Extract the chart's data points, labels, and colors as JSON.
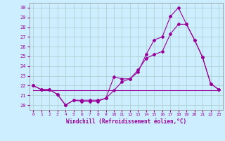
{
  "xlabel": "Windchill (Refroidissement éolien,°C)",
  "bg_color": "#cceeff",
  "line_color": "#990099",
  "grid_color": "#aacccc",
  "ylim": [
    19.5,
    30.5
  ],
  "xlim": [
    -0.5,
    23.5
  ],
  "yticks": [
    20,
    21,
    22,
    23,
    24,
    25,
    26,
    27,
    28,
    29,
    30
  ],
  "xticks": [
    0,
    1,
    2,
    3,
    4,
    5,
    6,
    7,
    8,
    9,
    10,
    11,
    12,
    13,
    14,
    15,
    16,
    17,
    18,
    19,
    20,
    21,
    22,
    23
  ],
  "line1_x": [
    0,
    1,
    2,
    3,
    4,
    5,
    6,
    7,
    8,
    9,
    10,
    11,
    12,
    13,
    14,
    15,
    16,
    17,
    18,
    19,
    20,
    21,
    22,
    23
  ],
  "line1_y": [
    22.0,
    21.6,
    21.6,
    21.1,
    20.0,
    20.5,
    20.5,
    20.5,
    20.5,
    20.7,
    22.9,
    22.7,
    22.7,
    23.4,
    25.2,
    26.7,
    27.0,
    29.1,
    30.0,
    28.3,
    26.7,
    24.9,
    22.2,
    21.6
  ],
  "line2_x": [
    0,
    1,
    2,
    3,
    4,
    5,
    6,
    7,
    8,
    9,
    10,
    11,
    12,
    13,
    14,
    15,
    16,
    17,
    18,
    19,
    20,
    21,
    22,
    23
  ],
  "line2_y": [
    22.0,
    21.6,
    21.6,
    21.1,
    20.0,
    20.5,
    20.4,
    20.4,
    20.4,
    20.7,
    21.5,
    22.4,
    22.7,
    23.6,
    24.8,
    25.2,
    25.5,
    27.3,
    28.3,
    28.3,
    26.7,
    24.9,
    22.2,
    21.6
  ],
  "line3_x": [
    0,
    1,
    2,
    3,
    4,
    5,
    6,
    7,
    8,
    9,
    10,
    11,
    12,
    13,
    14,
    15,
    16,
    17,
    18,
    19,
    20,
    21,
    22,
    23
  ],
  "line3_y": [
    21.5,
    21.5,
    21.5,
    21.5,
    21.5,
    21.5,
    21.5,
    21.5,
    21.5,
    21.5,
    21.5,
    21.5,
    21.5,
    21.5,
    21.5,
    21.5,
    21.5,
    21.5,
    21.5,
    21.5,
    21.5,
    21.5,
    21.5,
    21.5
  ]
}
